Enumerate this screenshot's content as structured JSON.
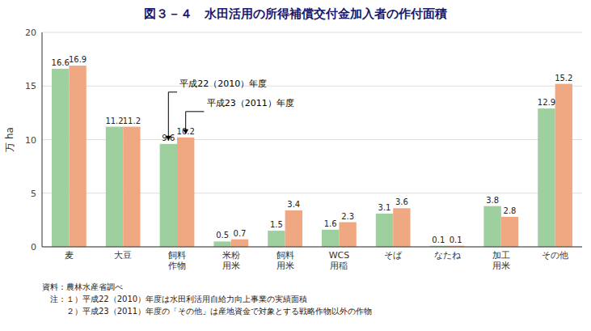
{
  "chart_data": {
    "type": "bar",
    "title": "図３－４　水田活用の所得補償交付金加入者の作付面積",
    "categories": [
      "麦",
      "大豆",
      "飼料\n作物",
      "米粉\n用米",
      "飼料\n用米",
      "WCS\n用稲",
      "そば",
      "なたね",
      "加工\n用米",
      "その他"
    ],
    "series": [
      {
        "name": "平成22（2010）年度",
        "color": "#9ecf9e",
        "values": [
          16.6,
          11.2,
          9.6,
          0.5,
          1.5,
          1.6,
          3.1,
          0.1,
          3.8,
          12.9
        ]
      },
      {
        "name": "平成23（2011）年度",
        "color": "#f0a882",
        "values": [
          16.9,
          11.2,
          10.2,
          0.7,
          3.4,
          2.3,
          3.6,
          0.1,
          2.8,
          15.2
        ]
      }
    ],
    "ylabel": "万 ha",
    "ylim": [
      0,
      20
    ],
    "yticks": [
      0,
      5,
      10,
      15,
      20
    ],
    "grid": true,
    "data_labels": true,
    "notes": [
      "資料：農林水産省調べ",
      "　注：１）平成22（2010）年度は水田利活用自給力向上事業の実績面積",
      "　　　２）平成23（2011）年度の「その他」は産地資金で対象とする戦略作物以外の作物"
    ]
  }
}
